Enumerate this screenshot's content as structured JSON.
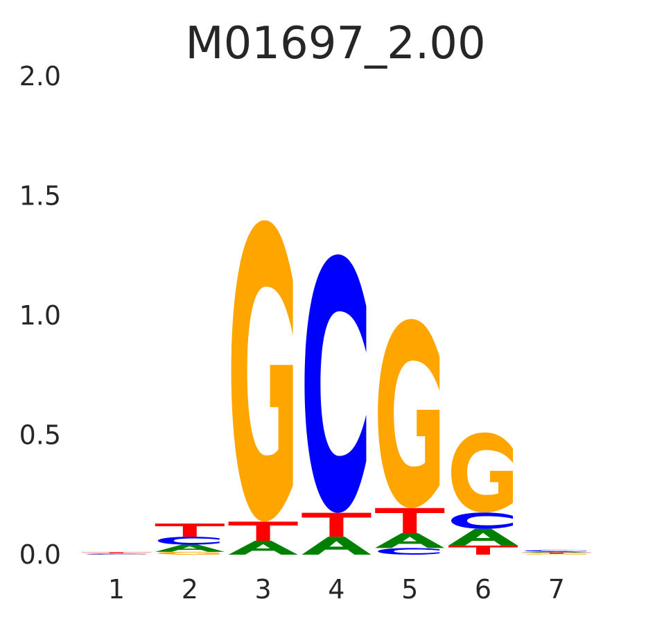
{
  "chart_data": {
    "type": "sequence-logo",
    "title": "M01697_2.00",
    "xlabel": "",
    "ylabel": "",
    "ylim": [
      0,
      2.0
    ],
    "yticks": [
      "0.0",
      "0.5",
      "1.0",
      "1.5",
      "2.0"
    ],
    "grid": false,
    "legend": "none",
    "colors": {
      "A": "#008000",
      "C": "#0000ff",
      "G": "#ffa500",
      "T": "#ff0000"
    },
    "positions": [
      {
        "label": "1",
        "stack": [
          {
            "base": "C",
            "height": 0.002
          },
          {
            "base": "G",
            "height": 0.002
          },
          {
            "base": "A",
            "height": 0.002
          },
          {
            "base": "T",
            "height": 0.004
          }
        ]
      },
      {
        "label": "2",
        "stack": [
          {
            "base": "G",
            "height": 0.012
          },
          {
            "base": "A",
            "height": 0.03
          },
          {
            "base": "C",
            "height": 0.033
          },
          {
            "base": "T",
            "height": 0.055
          }
        ]
      },
      {
        "label": "3",
        "stack": [
          {
            "base": "A",
            "height": 0.058
          },
          {
            "base": "T",
            "height": 0.08
          },
          {
            "base": "G",
            "height": 1.26
          }
        ]
      },
      {
        "label": "4",
        "stack": [
          {
            "base": "A",
            "height": 0.075
          },
          {
            "base": "T",
            "height": 0.1
          },
          {
            "base": "C",
            "height": 1.08
          }
        ]
      },
      {
        "label": "5",
        "stack": [
          {
            "base": "C",
            "height": 0.028
          },
          {
            "base": "A",
            "height": 0.062
          },
          {
            "base": "T",
            "height": 0.105
          },
          {
            "base": "G",
            "height": 0.79
          }
        ]
      },
      {
        "label": "6",
        "stack": [
          {
            "base": "T",
            "height": 0.038
          },
          {
            "base": "A",
            "height": 0.07
          },
          {
            "base": "C",
            "height": 0.068
          },
          {
            "base": "G",
            "height": 0.335
          }
        ]
      },
      {
        "label": "7",
        "stack": [
          {
            "base": "G",
            "height": 0.004
          },
          {
            "base": "T",
            "height": 0.005
          },
          {
            "base": "A",
            "height": 0.004
          },
          {
            "base": "C",
            "height": 0.006
          }
        ]
      }
    ]
  }
}
